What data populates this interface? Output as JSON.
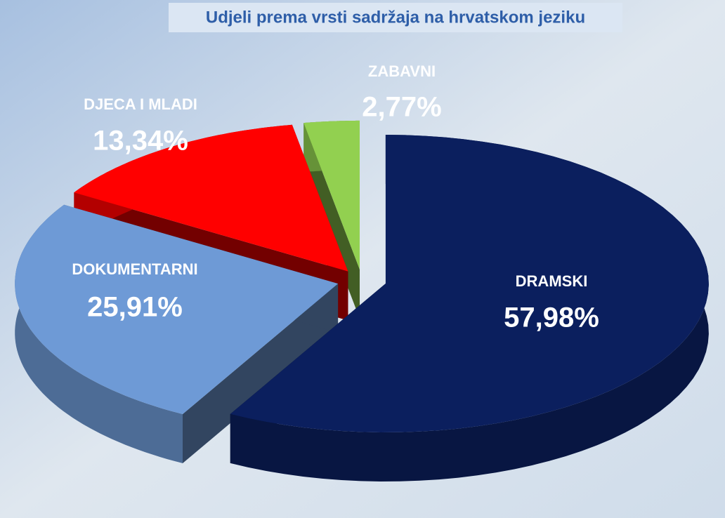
{
  "chart_data": {
    "type": "pie",
    "title": "Udjeli prema vrsti sadržaja  na hrvatskom jeziku",
    "categories": [
      "DRAMSKI",
      "DOKUMENTARNI",
      "DJECA I MLADI",
      "ZABAVNI"
    ],
    "values": [
      57.98,
      25.91,
      13.34,
      2.77
    ],
    "value_labels": [
      "57,98%",
      "25,91%",
      "13,34%",
      "2,77%"
    ],
    "colors": [
      "#0b1f5e",
      "#6e9ad6",
      "#ff0000",
      "#92d050"
    ]
  }
}
